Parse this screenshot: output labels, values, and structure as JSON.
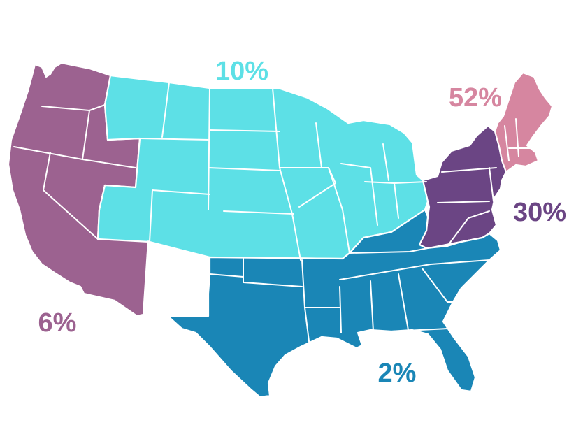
{
  "regions": [
    {
      "id": "west",
      "label": "6%",
      "color": "#9c6290"
    },
    {
      "id": "midwest",
      "label": "10%",
      "color": "#5de0e6"
    },
    {
      "id": "northeast",
      "label": "52%",
      "color": "#d686a0"
    },
    {
      "id": "midatlantic",
      "label": "30%",
      "color": "#6b4584"
    },
    {
      "id": "south",
      "label": "2%",
      "color": "#1a86b6"
    }
  ]
}
